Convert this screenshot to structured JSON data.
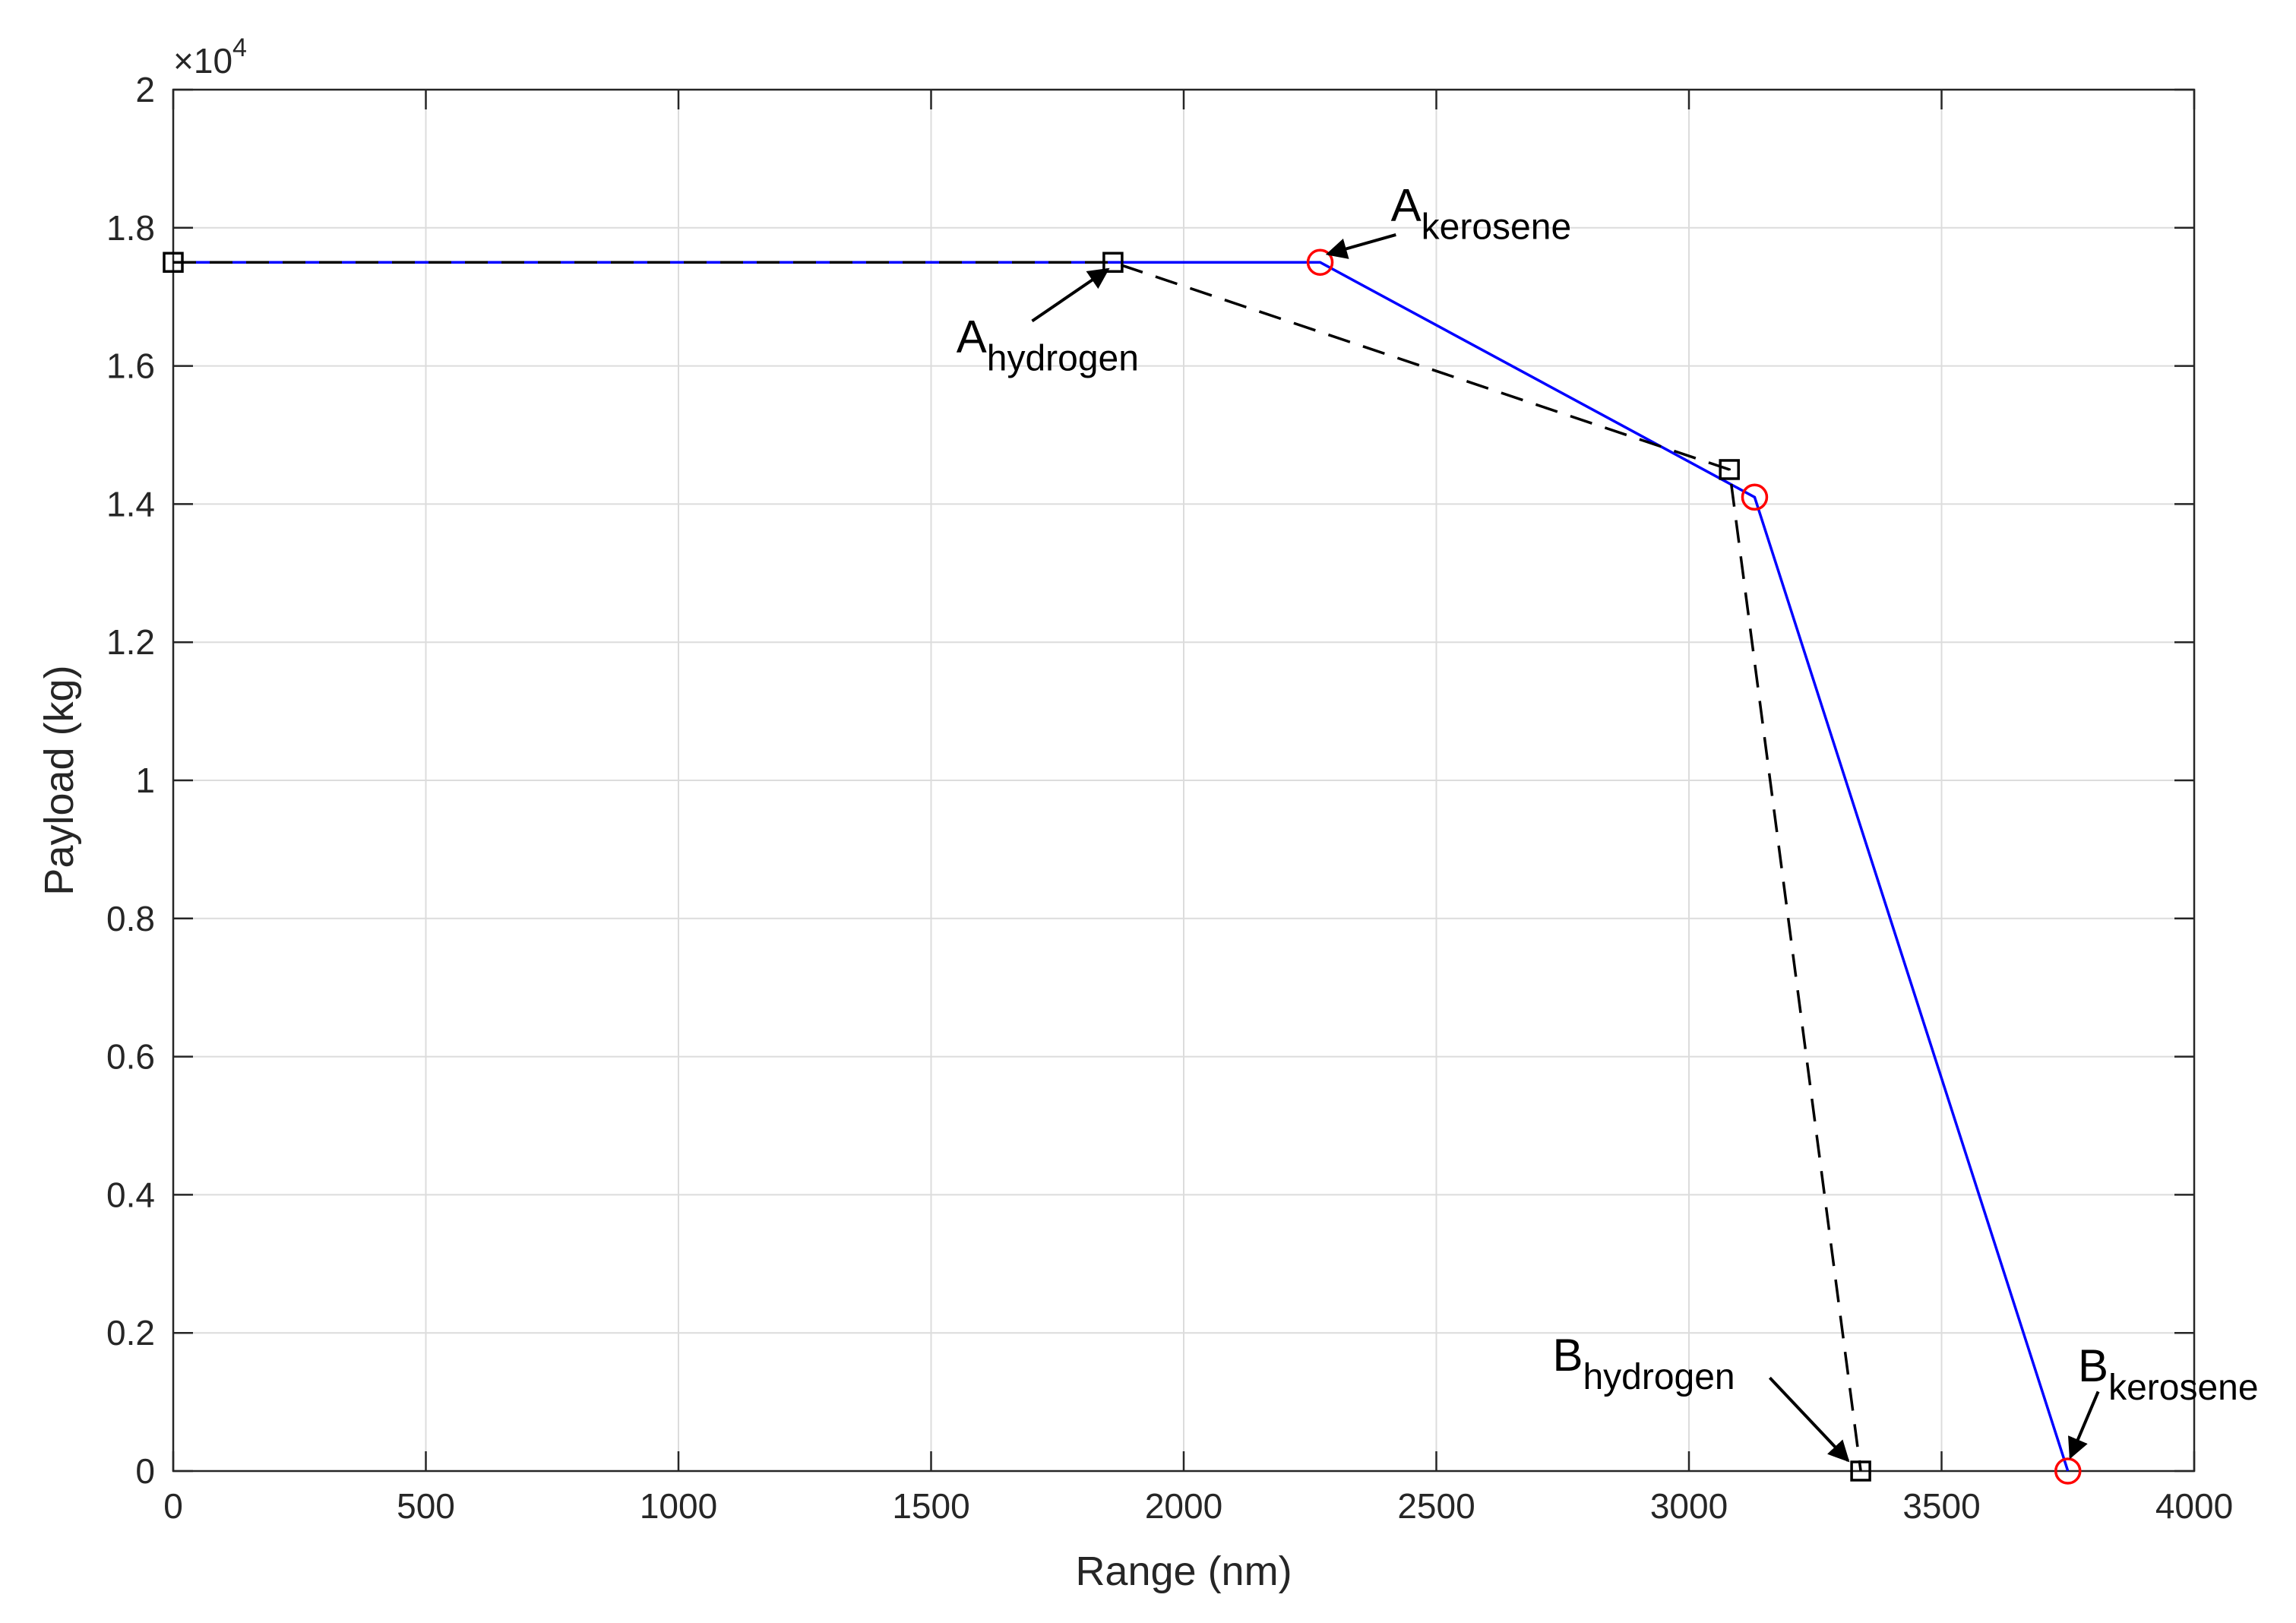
{
  "chart_data": {
    "type": "line",
    "xlabel": "Range (nm)",
    "ylabel": "Payload (kg)",
    "xlim": [
      0,
      4000
    ],
    "ylim": [
      0,
      20000
    ],
    "y_exponent_label": "×10",
    "y_exponent_power": "4",
    "x_ticks": [
      0,
      500,
      1000,
      1500,
      2000,
      2500,
      3000,
      3500,
      4000
    ],
    "x_tick_labels": [
      "0",
      "500",
      "1000",
      "1500",
      "2000",
      "2500",
      "3000",
      "3500",
      "4000"
    ],
    "y_ticks": [
      0,
      2000,
      4000,
      6000,
      8000,
      10000,
      12000,
      14000,
      16000,
      18000,
      20000
    ],
    "y_tick_labels": [
      "0",
      "0.2",
      "0.4",
      "0.6",
      "0.8",
      "1",
      "1.2",
      "1.4",
      "1.6",
      "1.8",
      "2"
    ],
    "grid": true,
    "series": [
      {
        "key": "kerosene",
        "color": "#0000ff",
        "line_style": "solid",
        "marker": "circle",
        "marker_color": "#ff0000",
        "x": [
          0,
          2270,
          3130,
          3750
        ],
        "y": [
          17500,
          17500,
          14100,
          0
        ],
        "marker_points": [
          1,
          2,
          3
        ]
      },
      {
        "key": "hydrogen",
        "color": "#000000",
        "line_style": "dashed",
        "marker": "square",
        "marker_color": "#000000",
        "x": [
          0,
          1860,
          3080,
          3340
        ],
        "y": [
          17500,
          17500,
          14500,
          0
        ],
        "marker_points": [
          0,
          1,
          2,
          3
        ]
      }
    ],
    "annotations": [
      {
        "main": "A",
        "sub": "hydrogen",
        "label_x": 1550,
        "label_y": 16200,
        "arrow_from": [
          1700,
          16650
        ],
        "arrow_to": [
          1850,
          17400
        ]
      },
      {
        "main": "A",
        "sub": "kerosene",
        "label_x": 2410,
        "label_y": 18100,
        "arrow_from": [
          2420,
          17900
        ],
        "arrow_to": [
          2285,
          17620
        ]
      },
      {
        "main": "B",
        "sub": "hydrogen",
        "label_x": 2730,
        "label_y": 1450,
        "arrow_from": [
          3160,
          1350
        ],
        "arrow_to": [
          3315,
          150
        ]
      },
      {
        "main": "B",
        "sub": "kerosene",
        "label_x": 3770,
        "label_y": 1300,
        "arrow_from": [
          3810,
          1150
        ],
        "arrow_to": [
          3755,
          200
        ]
      }
    ]
  }
}
